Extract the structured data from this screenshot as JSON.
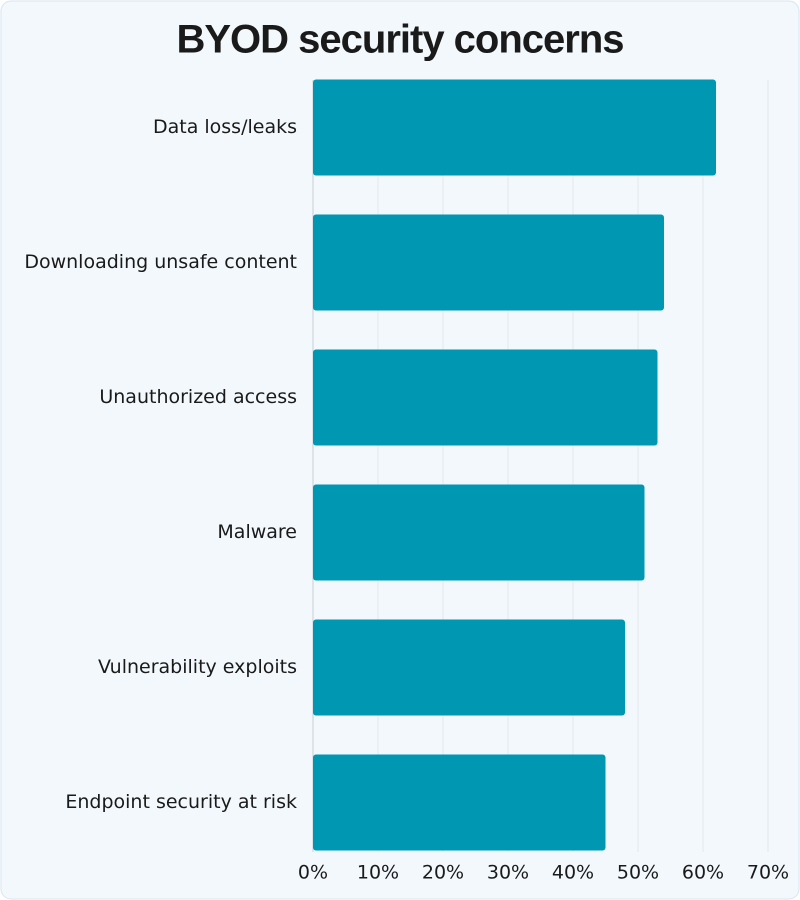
{
  "chart_data": {
    "type": "bar",
    "orientation": "horizontal",
    "title": "BYOD security concerns",
    "categories": [
      "Data loss/leaks",
      "Downloading unsafe content",
      "Unauthorized access",
      "Malware",
      "Vulnerability exploits",
      "Endpoint security at risk"
    ],
    "values": [
      62,
      54,
      53,
      51,
      48,
      45
    ],
    "color": "#0097b2",
    "xlim": [
      0,
      70
    ],
    "xticks": [
      {
        "value": 0,
        "label": "0%"
      },
      {
        "value": 10,
        "label": "10%"
      },
      {
        "value": 20,
        "label": "20%"
      },
      {
        "value": 30,
        "label": "30%"
      },
      {
        "value": 40,
        "label": "40%"
      },
      {
        "value": 50,
        "label": "50%"
      },
      {
        "value": 60,
        "label": "60%"
      },
      {
        "value": 70,
        "label": "70%"
      }
    ],
    "grid": true
  }
}
